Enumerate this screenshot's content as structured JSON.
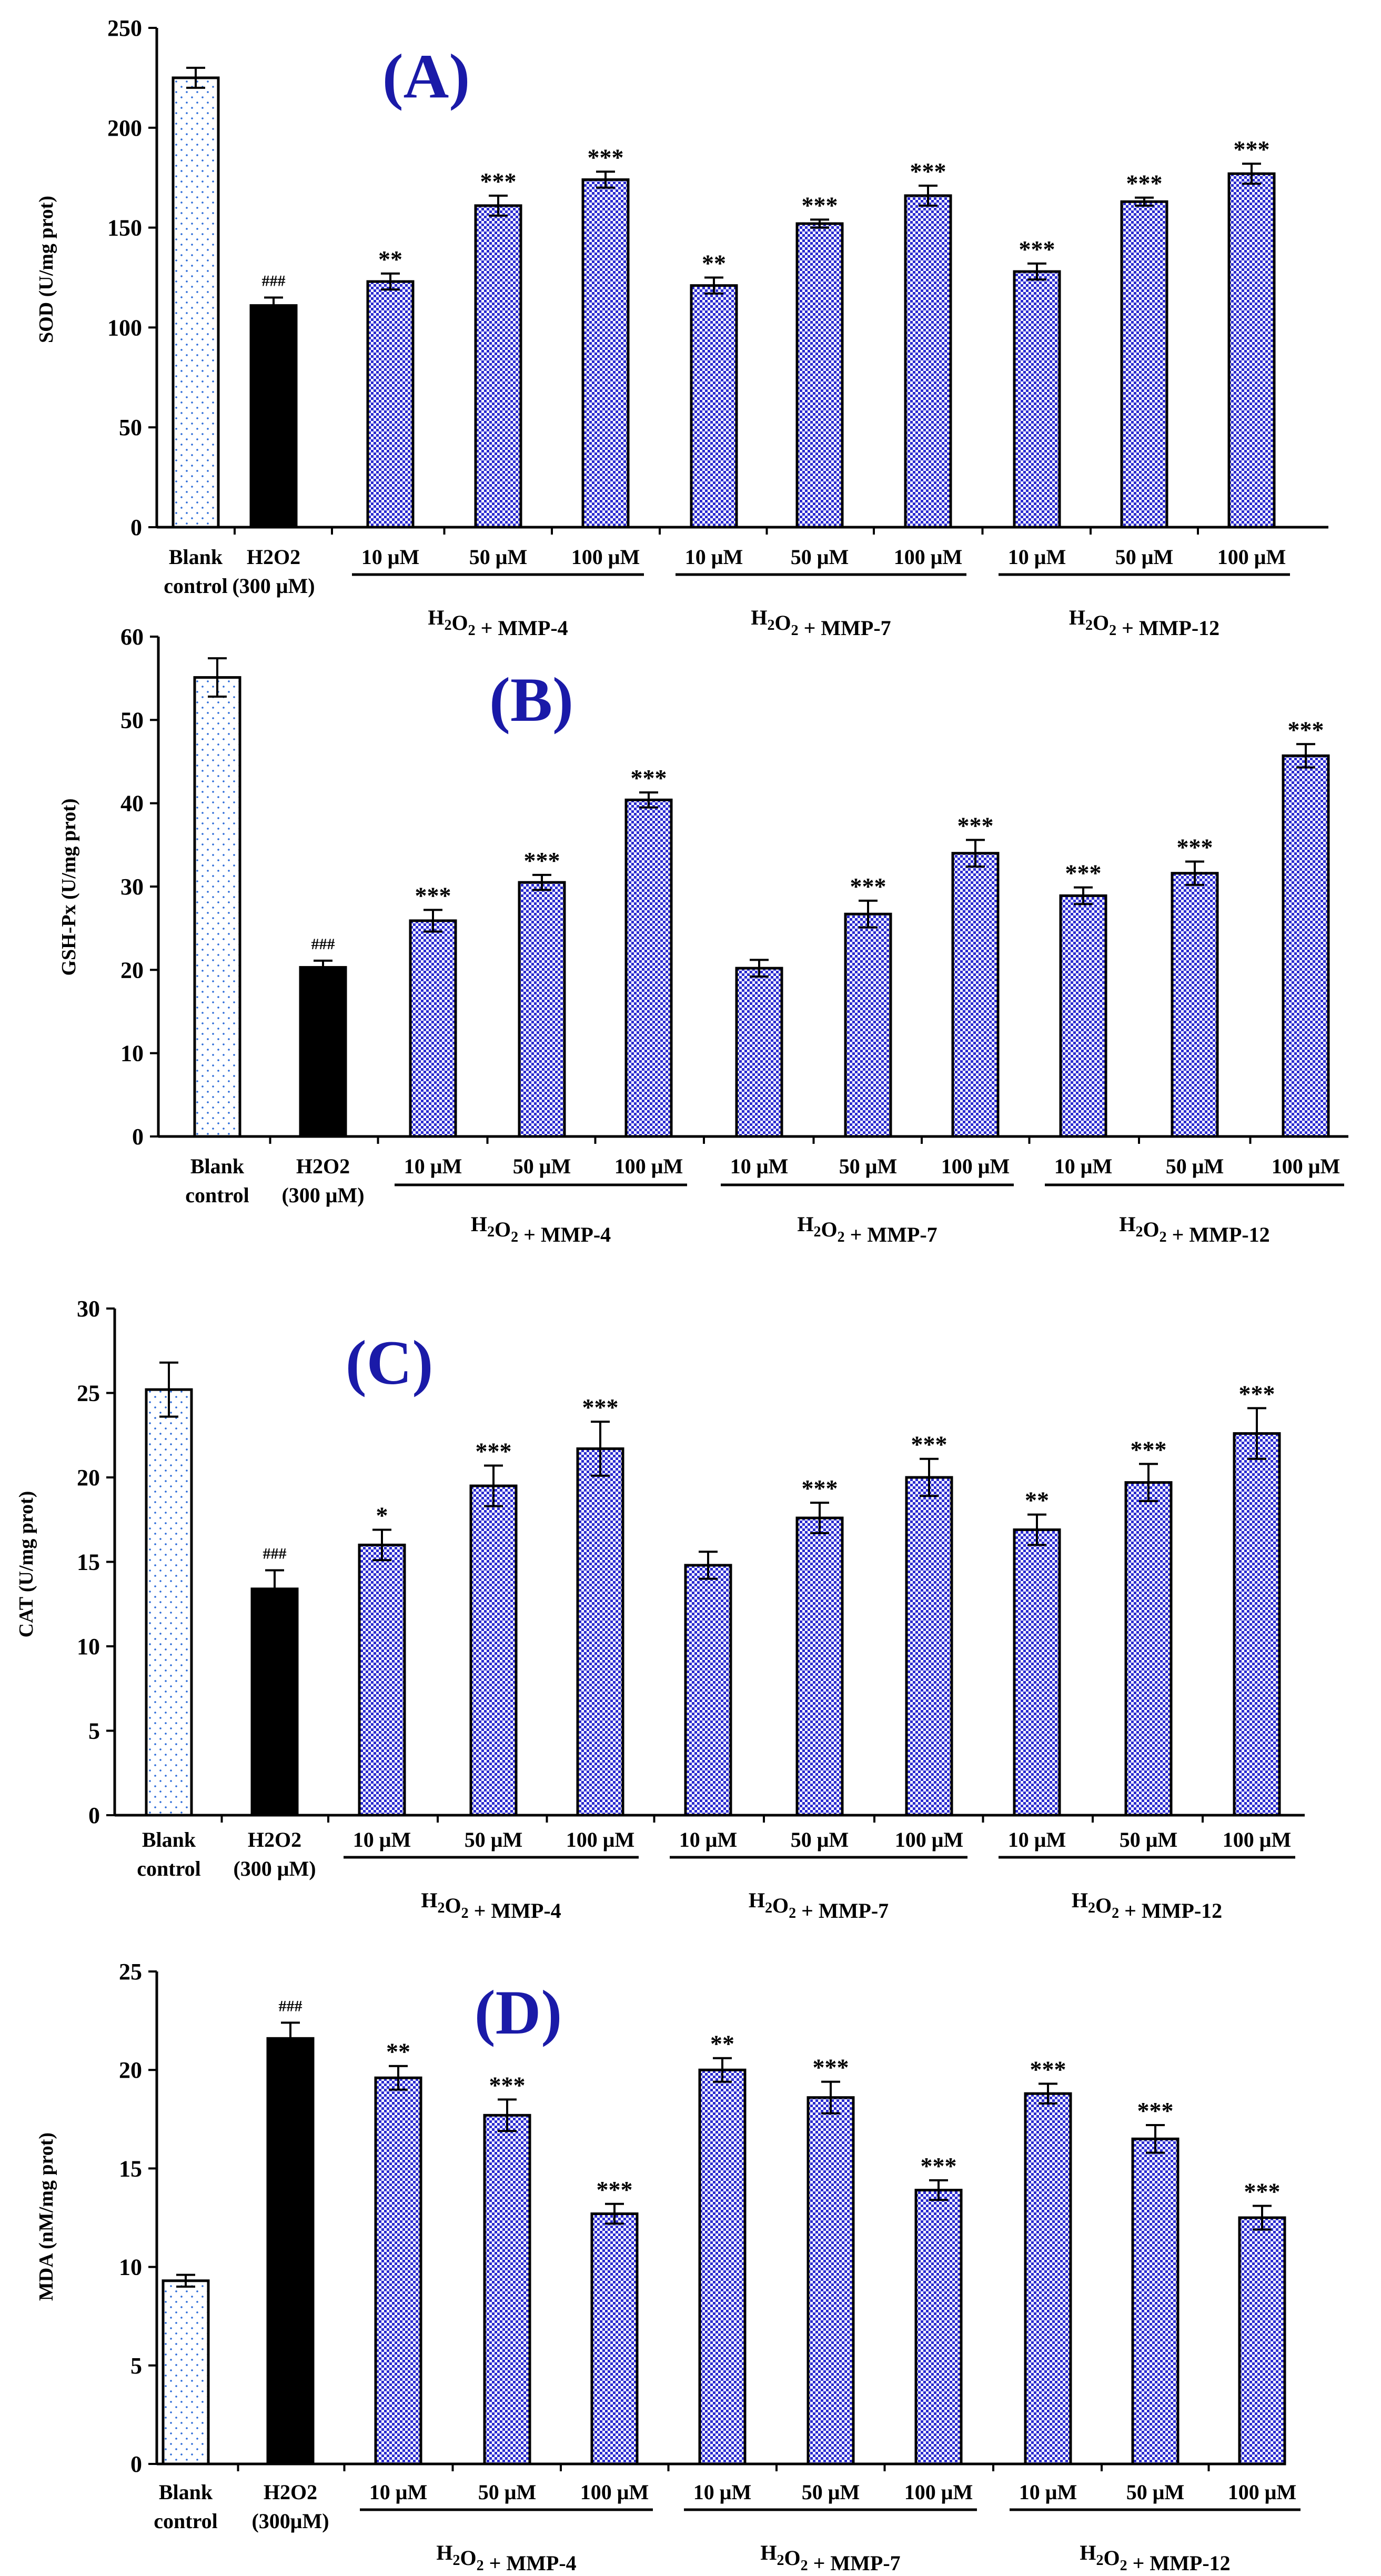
{
  "colors": {
    "title": "#1a1aa8",
    "check_blue": "#2b2bd0",
    "dot_blue": "#2a6ad8",
    "solid_black": "#000000"
  },
  "chart_data": [
    {
      "type": "bar",
      "title": "(A)",
      "ylabel": "SOD (U/mg prot)",
      "ylim": [
        0,
        250
      ],
      "yticks": [
        0,
        50,
        100,
        150,
        200,
        250
      ],
      "ytick_labels": [
        "0",
        "50",
        "100",
        "150",
        "200",
        "250"
      ],
      "categories": [
        {
          "line1": "Blank",
          "line2": "control"
        },
        {
          "line1": "H2O2",
          "line2": "(300 μM)"
        },
        {
          "line1": "10 μM"
        },
        {
          "line1": "50 μM"
        },
        {
          "line1": "100 μM"
        },
        {
          "line1": "10 μM"
        },
        {
          "line1": "50 μM"
        },
        {
          "line1": "100 μM"
        },
        {
          "line1": "10 μM"
        },
        {
          "line1": "50 μM"
        },
        {
          "line1": "100 μM"
        }
      ],
      "patterns": [
        "dots",
        "solid",
        "check",
        "check",
        "check",
        "check",
        "check",
        "check",
        "check",
        "check",
        "check"
      ],
      "values": [
        225,
        111,
        123,
        161,
        174,
        121,
        152,
        166,
        128,
        163,
        177
      ],
      "errors": [
        5,
        4,
        4,
        5,
        4,
        4,
        2,
        5,
        4,
        2,
        5
      ],
      "annotations": [
        "",
        "###",
        "**",
        "***",
        "***",
        "**",
        "***",
        "***",
        "***",
        "***",
        "***"
      ],
      "groups": [
        {
          "label": "H₂O₂ + MMP-4",
          "start": 2,
          "end": 4
        },
        {
          "label": "H₂O₂ + MMP-7",
          "start": 5,
          "end": 7
        },
        {
          "label": "H₂O₂ + MMP-12",
          "start": 8,
          "end": 10
        }
      ]
    },
    {
      "type": "bar",
      "title": "(B)",
      "ylabel": "GSH-Px (U/mg prot)",
      "ylim": [
        0,
        60
      ],
      "yticks": [
        0,
        10,
        20,
        30,
        40,
        50,
        60
      ],
      "ytick_labels": [
        "0",
        "10",
        "20",
        "30",
        "40",
        "50",
        "60"
      ],
      "categories": [
        {
          "line1": "Blank",
          "line2": "control"
        },
        {
          "line1": "H2O2",
          "line2": "(300 μM)"
        },
        {
          "line1": "10 μM"
        },
        {
          "line1": "50 μM"
        },
        {
          "line1": "100 μM"
        },
        {
          "line1": "10 μM"
        },
        {
          "line1": "50 μM"
        },
        {
          "line1": "100 μM"
        },
        {
          "line1": "10 μM"
        },
        {
          "line1": "50 μM"
        },
        {
          "line1": "100 μM"
        }
      ],
      "patterns": [
        "dots",
        "solid",
        "check",
        "check",
        "check",
        "check",
        "check",
        "check",
        "check",
        "check",
        "check"
      ],
      "values": [
        55.1,
        20.3,
        25.9,
        30.5,
        40.4,
        20.2,
        26.7,
        34.0,
        28.9,
        31.6,
        45.7
      ],
      "errors": [
        2.3,
        0.8,
        1.3,
        0.9,
        0.9,
        1.0,
        1.6,
        1.6,
        1.0,
        1.4,
        1.4
      ],
      "annotations": [
        "",
        "###",
        "***",
        "***",
        "***",
        "",
        "***",
        "***",
        "***",
        "***",
        "***"
      ],
      "groups": [
        {
          "label": "H₂O₂ + MMP-4",
          "start": 2,
          "end": 4
        },
        {
          "label": "H₂O₂ + MMP-7",
          "start": 5,
          "end": 7
        },
        {
          "label": "H₂O₂ + MMP-12",
          "start": 8,
          "end": 10
        }
      ]
    },
    {
      "type": "bar",
      "title": "(C)",
      "ylabel": "CAT (U/mg prot)",
      "ylim": [
        0,
        30
      ],
      "yticks": [
        0,
        5,
        10,
        15,
        20,
        25,
        30
      ],
      "ytick_labels": [
        "0",
        "5",
        "10",
        "15",
        "20",
        "25",
        "30"
      ],
      "categories": [
        {
          "line1": "Blank",
          "line2": "control"
        },
        {
          "line1": "H2O2",
          "line2": "(300 μM)"
        },
        {
          "line1": "10 μM"
        },
        {
          "line1": "50 μM"
        },
        {
          "line1": "100 μM"
        },
        {
          "line1": "10 μM"
        },
        {
          "line1": "50 μM"
        },
        {
          "line1": "100 μM"
        },
        {
          "line1": "10 μM"
        },
        {
          "line1": "50 μM"
        },
        {
          "line1": "100 μM"
        }
      ],
      "patterns": [
        "dots",
        "solid",
        "check",
        "check",
        "check",
        "check",
        "check",
        "check",
        "check",
        "check",
        "check"
      ],
      "values": [
        25.2,
        13.4,
        16.0,
        19.5,
        21.7,
        14.8,
        17.6,
        20.0,
        16.9,
        19.7,
        22.6
      ],
      "errors": [
        1.6,
        1.1,
        0.9,
        1.2,
        1.6,
        0.8,
        0.9,
        1.1,
        0.9,
        1.1,
        1.5
      ],
      "annotations": [
        "",
        "###",
        "*",
        "***",
        "***",
        "",
        "***",
        "***",
        "**",
        "***",
        "***"
      ],
      "groups": [
        {
          "label": "H₂O₂ + MMP-4",
          "start": 2,
          "end": 4
        },
        {
          "label": "H₂O₂ + MMP-7",
          "start": 5,
          "end": 7
        },
        {
          "label": "H₂O₂ + MMP-12",
          "start": 8,
          "end": 10
        }
      ]
    },
    {
      "type": "bar",
      "title": "(D)",
      "ylabel": "MDA (nM/mg prot)",
      "ylim": [
        0,
        25
      ],
      "yticks": [
        0,
        5,
        10,
        15,
        20,
        25
      ],
      "ytick_labels": [
        "0",
        "5",
        "10",
        "15",
        "20",
        "25"
      ],
      "categories": [
        {
          "line1": "Blank",
          "line2": "control"
        },
        {
          "line1": "H2O2",
          "line2": "(300μM)"
        },
        {
          "line1": "10 μM"
        },
        {
          "line1": "50 μM"
        },
        {
          "line1": "100 μM"
        },
        {
          "line1": "10 μM"
        },
        {
          "line1": "50 μM"
        },
        {
          "line1": "100 μM"
        },
        {
          "line1": "10 μM"
        },
        {
          "line1": "50 μM"
        },
        {
          "line1": "100 μM"
        }
      ],
      "patterns": [
        "dots",
        "solid",
        "check",
        "check",
        "check",
        "check",
        "check",
        "check",
        "check",
        "check",
        "check"
      ],
      "values": [
        9.3,
        21.6,
        19.6,
        17.7,
        12.7,
        20.0,
        18.6,
        13.9,
        18.8,
        16.5,
        12.5
      ],
      "errors": [
        0.3,
        0.8,
        0.6,
        0.8,
        0.5,
        0.6,
        0.8,
        0.5,
        0.5,
        0.7,
        0.6
      ],
      "annotations": [
        "",
        "###",
        "**",
        "***",
        "***",
        "**",
        "***",
        "***",
        "***",
        "***",
        "***"
      ],
      "groups": [
        {
          "label": "H₂O₂ + MMP-4",
          "start": 2,
          "end": 4
        },
        {
          "label": "H₂O₂ + MMP-7",
          "start": 5,
          "end": 7
        },
        {
          "label": "H₂O₂ + MMP-12",
          "start": 8,
          "end": 10
        }
      ]
    }
  ]
}
